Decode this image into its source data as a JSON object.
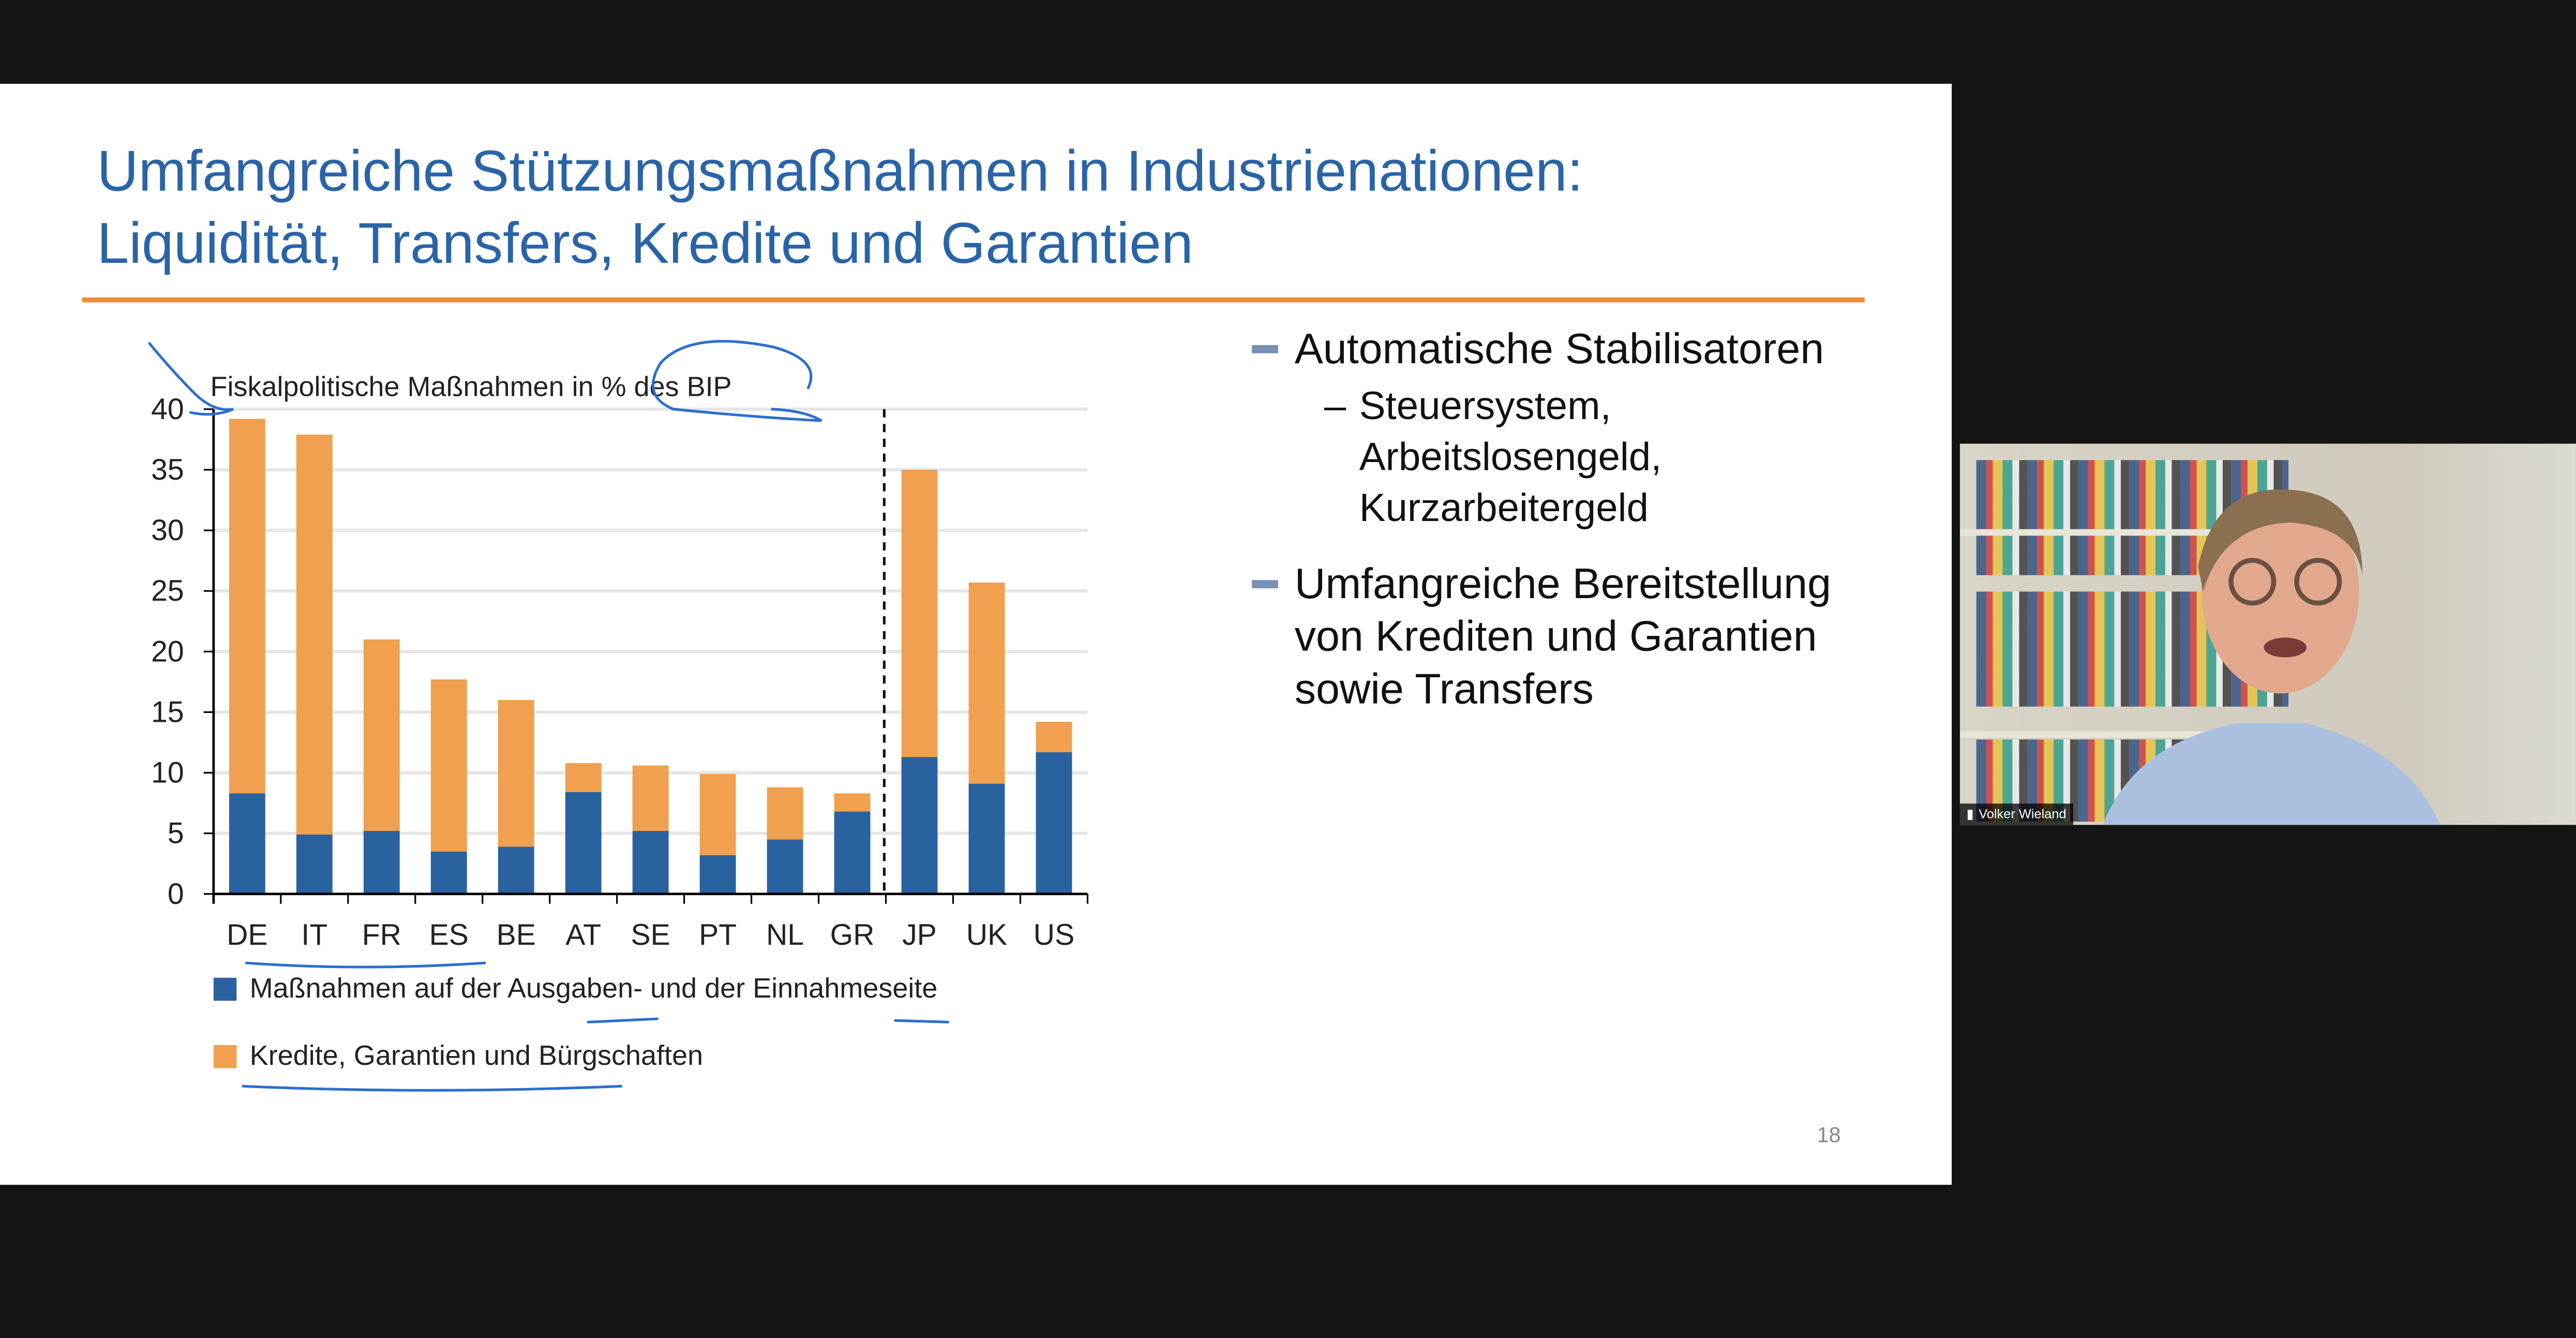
{
  "slide": {
    "title_line1": "Umfangreiche Stützungsmaßnahmen in Industrienationen:",
    "title_line2": "Liquidität, Transfers, Kredite und Garantien",
    "page_number": "18",
    "bullets": [
      {
        "text": "Automatische Stabilisatoren",
        "sub": [
          "Steuersystem,",
          "Arbeitslosengeld,",
          "Kurzarbeitergeld"
        ]
      },
      {
        "text": "Umfangreiche Bereitstellung von Krediten und Garantien sowie Transfers",
        "sub": []
      }
    ],
    "sub_dash": "–"
  },
  "colors": {
    "title": "#2a64a8",
    "rule": "#ee8c3a",
    "blue": "#2a62a0",
    "orange": "#f0a04e",
    "ink": "#2c6ed1"
  },
  "chart_data": {
    "type": "bar",
    "stacked": true,
    "title": "Fiskalpolitische Maßnahmen in % des BIP",
    "categories": [
      "DE",
      "IT",
      "FR",
      "ES",
      "BE",
      "AT",
      "SE",
      "PT",
      "NL",
      "GR",
      "JP",
      "UK",
      "US"
    ],
    "series": [
      {
        "name": "Maßnahmen auf der Ausgaben- und der Einnahmeseite",
        "values": [
          8.3,
          4.9,
          5.2,
          3.5,
          3.9,
          8.4,
          5.2,
          3.2,
          4.5,
          6.8,
          11.3,
          9.1,
          11.7
        ]
      },
      {
        "name": "Kredite, Garantien und Bürgschaften",
        "values": [
          30.9,
          33.0,
          15.8,
          14.2,
          12.1,
          2.4,
          5.4,
          6.7,
          4.3,
          1.5,
          23.7,
          16.6,
          2.5
        ]
      }
    ],
    "ylim": [
      0,
      40
    ],
    "yticks": [
      0,
      5,
      10,
      15,
      20,
      25,
      30,
      35,
      40
    ],
    "grid": true,
    "separator_after": "GR",
    "legend": "bottom"
  },
  "video": {
    "participant_name": "Volker Wieland"
  }
}
